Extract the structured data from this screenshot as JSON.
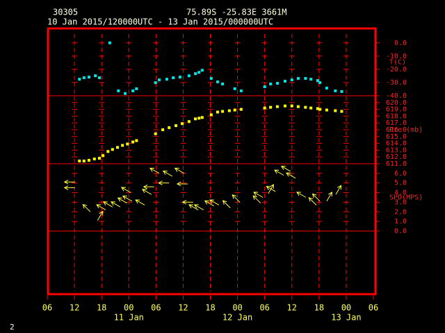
{
  "header": {
    "station": "30305",
    "location": "75.89S  -25.83E  3661M",
    "period": "10 Jan 2015/120000UTC - 13 Jan 2015/000000UTC"
  },
  "x_axis": {
    "xlim": [
      0,
      72
    ],
    "xticks": [
      {
        "value": 0,
        "label": "06"
      },
      {
        "value": 6,
        "label": "12"
      },
      {
        "value": 12,
        "label": "18"
      },
      {
        "value": 18,
        "label": "00"
      },
      {
        "value": 24,
        "label": "06"
      },
      {
        "value": 30,
        "label": "12"
      },
      {
        "value": 36,
        "label": "18"
      },
      {
        "value": 42,
        "label": "00"
      },
      {
        "value": 48,
        "label": "06"
      },
      {
        "value": 54,
        "label": "12"
      },
      {
        "value": 60,
        "label": "18"
      },
      {
        "value": 66,
        "label": "00"
      },
      {
        "value": 72,
        "label": "06"
      }
    ],
    "date_labels": [
      {
        "value": 18,
        "label": "11 Jan"
      },
      {
        "value": 42,
        "label": "12 Jan"
      },
      {
        "value": 66,
        "label": "13 Jan"
      }
    ]
  },
  "chart_data": [
    {
      "type": "scatter",
      "ylabel": "T(C)",
      "color": "#00e5e5",
      "x": [
        7.1,
        8.1,
        9.2,
        10.6,
        11.5,
        13.8,
        15.7,
        17.2,
        18.9,
        19.7,
        23.9,
        24.7,
        26.4,
        27.8,
        29.3,
        31.3,
        32.7,
        33.5,
        34.2,
        36.2,
        37.6,
        38.7,
        41.4,
        42.8,
        48.0,
        49.3,
        50.8,
        52.5,
        54.0,
        55.4,
        57.0,
        58.2,
        59.7,
        60.2,
        61.7,
        63.6,
        65.0
      ],
      "values": [
        -27.5,
        -26.4,
        -25.9,
        -24.9,
        -26.4,
        0.0,
        -36.3,
        -38.3,
        -36.3,
        -34.7,
        -30.1,
        -28.0,
        -27.5,
        -26.4,
        -25.9,
        -24.9,
        -23.3,
        -22.3,
        -20.7,
        -26.9,
        -29.5,
        -31.1,
        -34.7,
        -36.3,
        -33.2,
        -31.1,
        -30.6,
        -29.0,
        -28.0,
        -26.9,
        -26.9,
        -27.5,
        -28.5,
        -30.1,
        -34.2,
        -36.3,
        -36.8
      ],
      "ylim": [
        -40,
        10.9
      ],
      "yticks": [
        {
          "value": -40,
          "label": "-40.0"
        },
        {
          "value": -30,
          "label": "-30.0"
        },
        {
          "value": -20,
          "label": "-20.0"
        },
        {
          "value": -10,
          "label": "-10.0"
        },
        {
          "value": 0,
          "label": "0.0"
        }
      ]
    },
    {
      "type": "scatter",
      "ylabel": "Pre (mb)",
      "color": "#ffff00",
      "x": [
        7.1,
        8.1,
        9.2,
        10.4,
        11.5,
        12.3,
        13.4,
        14.4,
        15.5,
        16.6,
        17.7,
        18.9,
        19.7,
        23.9,
        25.5,
        26.9,
        28.4,
        29.8,
        31.3,
        32.7,
        33.5,
        34.2,
        36.2,
        37.6,
        38.7,
        40.2,
        41.4,
        42.8,
        48.0,
        49.3,
        50.8,
        52.5,
        54.0,
        55.4,
        57.0,
        58.2,
        59.7,
        60.2,
        61.7,
        63.6,
        65.0
      ],
      "values": [
        611.4,
        611.4,
        611.5,
        611.7,
        611.8,
        612.2,
        612.8,
        613.1,
        613.4,
        613.7,
        613.9,
        614.2,
        614.4,
        615.4,
        616.0,
        616.3,
        616.6,
        616.9,
        617.2,
        617.6,
        617.7,
        617.8,
        618.2,
        618.6,
        618.7,
        618.8,
        618.9,
        619.0,
        619.2,
        619.3,
        619.4,
        619.5,
        619.5,
        619.4,
        619.3,
        619.2,
        619.1,
        619.0,
        618.9,
        618.8,
        618.7
      ],
      "ylim": [
        611,
        621.0
      ],
      "yticks": [
        {
          "value": 611,
          "label": "611.0"
        },
        {
          "value": 612,
          "label": "612.0"
        },
        {
          "value": 613,
          "label": "613.0"
        },
        {
          "value": 614,
          "label": "614.0"
        },
        {
          "value": 615,
          "label": "615.0"
        },
        {
          "value": 616,
          "label": "616.0"
        },
        {
          "value": 617,
          "label": "617.0"
        },
        {
          "value": 618,
          "label": "618.0"
        },
        {
          "value": 619,
          "label": "619.0"
        },
        {
          "value": 620,
          "label": "620.0"
        }
      ]
    },
    {
      "type": "wind",
      "ylabel": "SPD(MPS)",
      "color": "#ffff40",
      "x": [
        6.1,
        6.1,
        9.5,
        11.1,
        12.9,
        14.4,
        16.1,
        17.6,
        18.4,
        18.7,
        21.5,
        23.0,
        23.6,
        24.7,
        26.9,
        27.6,
        30.2,
        31.0,
        32.2,
        33.3,
        34.5,
        36.8,
        37.9,
        40.4,
        42.5,
        47.1,
        47.6,
        48.8,
        50.4,
        52.2,
        53.7,
        54.8,
        57.1,
        59.4,
        60.2,
        61.7,
        63.7
      ],
      "values": [
        5.1,
        4.5,
        2.0,
        1.1,
        2.2,
        2.5,
        2.5,
        2.9,
        4.0,
        3.1,
        2.7,
        3.8,
        4.6,
        6.0,
        5.0,
        5.7,
        6.0,
        4.9,
        3.0,
        2.2,
        2.2,
        2.6,
        2.7,
        2.4,
        3.0,
        2.9,
        3.5,
        3.9,
        4.1,
        5.8,
        6.2,
        5.5,
        3.5,
        2.7,
        3.1,
        3.1,
        3.8
      ],
      "directions": [
        270,
        270,
        315,
        30,
        300,
        300,
        300,
        300,
        300,
        300,
        300,
        300,
        270,
        300,
        270,
        300,
        300,
        270,
        270,
        300,
        300,
        300,
        300,
        315,
        315,
        315,
        300,
        30,
        300,
        300,
        300,
        300,
        300,
        315,
        315,
        30,
        30
      ],
      "ylim": [
        0,
        7.0
      ],
      "yticks": [
        {
          "value": 0,
          "label": "0.0"
        },
        {
          "value": 1,
          "label": "1.0"
        },
        {
          "value": 2,
          "label": "2.0"
        },
        {
          "value": 3,
          "label": "3.0"
        },
        {
          "value": 4,
          "label": "4.0"
        },
        {
          "value": 5,
          "label": "5.0"
        },
        {
          "value": 6,
          "label": "6.0"
        }
      ]
    }
  ],
  "footer": "2"
}
